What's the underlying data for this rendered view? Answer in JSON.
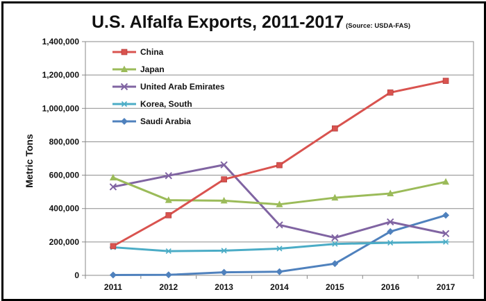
{
  "chart_data": {
    "type": "line",
    "title": "U.S. Alfalfa Exports, 2011-2017",
    "source_note": "(Source: USDA-FAS)",
    "xlabel": "",
    "ylabel": "Metric Tons",
    "categories": [
      "2011",
      "2012",
      "2013",
      "2014",
      "2015",
      "2016",
      "2017"
    ],
    "ylim": [
      0,
      1400000
    ],
    "yticks": [
      0,
      200000,
      400000,
      600000,
      800000,
      1000000,
      1200000,
      1400000
    ],
    "ytick_labels": [
      "0",
      "200,000",
      "400,000",
      "600,000",
      "800,000",
      "1,000,000",
      "1,200,000",
      "1,400,000"
    ],
    "grid": true,
    "legend_position": "top-left",
    "series": [
      {
        "name": "China",
        "color": "#d9534f",
        "marker": "square",
        "values": [
          175000,
          360000,
          575000,
          660000,
          880000,
          1095000,
          1165000
        ]
      },
      {
        "name": "Japan",
        "color": "#9bbb59",
        "marker": "triangle",
        "values": [
          585000,
          450000,
          447000,
          425000,
          465000,
          490000,
          560000
        ]
      },
      {
        "name": "United Arab Emirates",
        "color": "#8064a2",
        "marker": "x",
        "values": [
          530000,
          597000,
          662000,
          302000,
          225000,
          320000,
          250000
        ]
      },
      {
        "name": "Korea, South",
        "color": "#4bacc6",
        "marker": "star",
        "values": [
          168000,
          145000,
          148000,
          160000,
          188000,
          195000,
          200000
        ]
      },
      {
        "name": "Saudi Arabia",
        "color": "#4f81bd",
        "marker": "diamond",
        "values": [
          2000,
          3000,
          18000,
          22000,
          70000,
          262000,
          360000
        ]
      }
    ]
  }
}
